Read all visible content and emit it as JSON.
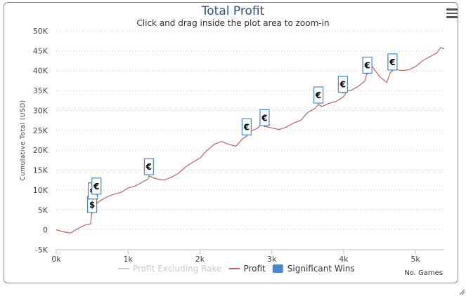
{
  "chart_data": {
    "type": "line",
    "title": "Total Profit",
    "subtitle": "Click and drag inside the plot area to zoom-in",
    "xlabel": "No. Games",
    "ylabel": "Cumulative Total (USD)",
    "xlim": [
      0,
      5400
    ],
    "ylim": [
      -5000,
      50000
    ],
    "x_ticks": [
      0,
      1000,
      2000,
      3000,
      4000,
      5000
    ],
    "x_tick_labels": [
      "0k",
      "1k",
      "2k",
      "3k",
      "4k",
      "5k"
    ],
    "y_ticks": [
      -5000,
      0,
      5000,
      10000,
      15000,
      20000,
      25000,
      30000,
      35000,
      40000,
      45000,
      50000
    ],
    "y_tick_labels": [
      "-5K",
      "0",
      "5K",
      "10K",
      "15K",
      "20K",
      "25K",
      "30K",
      "35K",
      "40K",
      "45K",
      "50K"
    ],
    "grid": "horizontal dotted",
    "legend_position": "bottom",
    "legend": [
      {
        "name": "Profit Excluding Rake",
        "style": "line",
        "color": "#cccccc",
        "hidden": true
      },
      {
        "name": "Profit",
        "style": "line",
        "color": "#b5655f"
      },
      {
        "name": "Significant Wins",
        "style": "flag",
        "color": "#4a86c8"
      }
    ],
    "series": [
      {
        "name": "Profit",
        "color": "#b5655f",
        "x": [
          0,
          100,
          200,
          300,
          400,
          480,
          490,
          500,
          600,
          700,
          800,
          900,
          1000,
          1100,
          1200,
          1280,
          1290,
          1400,
          1500,
          1600,
          1700,
          1800,
          1900,
          2000,
          2100,
          2200,
          2300,
          2400,
          2500,
          2600,
          2650,
          2700,
          2800,
          2850,
          2900,
          3000,
          3100,
          3200,
          3300,
          3400,
          3500,
          3600,
          3650,
          3700,
          3800,
          3900,
          4000,
          4050,
          4100,
          4200,
          4300,
          4330,
          4400,
          4500,
          4600,
          4650,
          4700,
          4800,
          4900,
          5000,
          5100,
          5200,
          5300,
          5350,
          5400
        ],
        "values": [
          0,
          -500,
          -800,
          300,
          1200,
          1500,
          4000,
          5500,
          7200,
          8200,
          8900,
          9400,
          10500,
          11000,
          12000,
          12800,
          13500,
          12800,
          12500,
          13200,
          14200,
          15800,
          17000,
          18000,
          20000,
          21500,
          22200,
          21500,
          21000,
          23000,
          23500,
          24800,
          25500,
          26500,
          26000,
          25600,
          25200,
          25800,
          26800,
          27500,
          29500,
          30500,
          31500,
          31000,
          31800,
          32300,
          33500,
          35000,
          35000,
          36000,
          37500,
          40000,
          41000,
          38500,
          37000,
          39500,
          40500,
          40000,
          40200,
          41000,
          42500,
          43500,
          44500,
          45800,
          45500
        ]
      }
    ],
    "flags": [
      {
        "x": 500,
        "y": 4000,
        "text": "$"
      },
      {
        "x": 510,
        "y": 7400,
        "text": "€"
      },
      {
        "x": 560,
        "y": 8600,
        "text": "€"
      },
      {
        "x": 1290,
        "y": 13500,
        "text": "€"
      },
      {
        "x": 2650,
        "y": 23500,
        "text": "€"
      },
      {
        "x": 2900,
        "y": 25800,
        "text": "€"
      },
      {
        "x": 3650,
        "y": 31500,
        "text": "€"
      },
      {
        "x": 3990,
        "y": 34200,
        "text": "€"
      },
      {
        "x": 4330,
        "y": 39000,
        "text": "€"
      },
      {
        "x": 4680,
        "y": 39800,
        "text": "€"
      }
    ]
  }
}
